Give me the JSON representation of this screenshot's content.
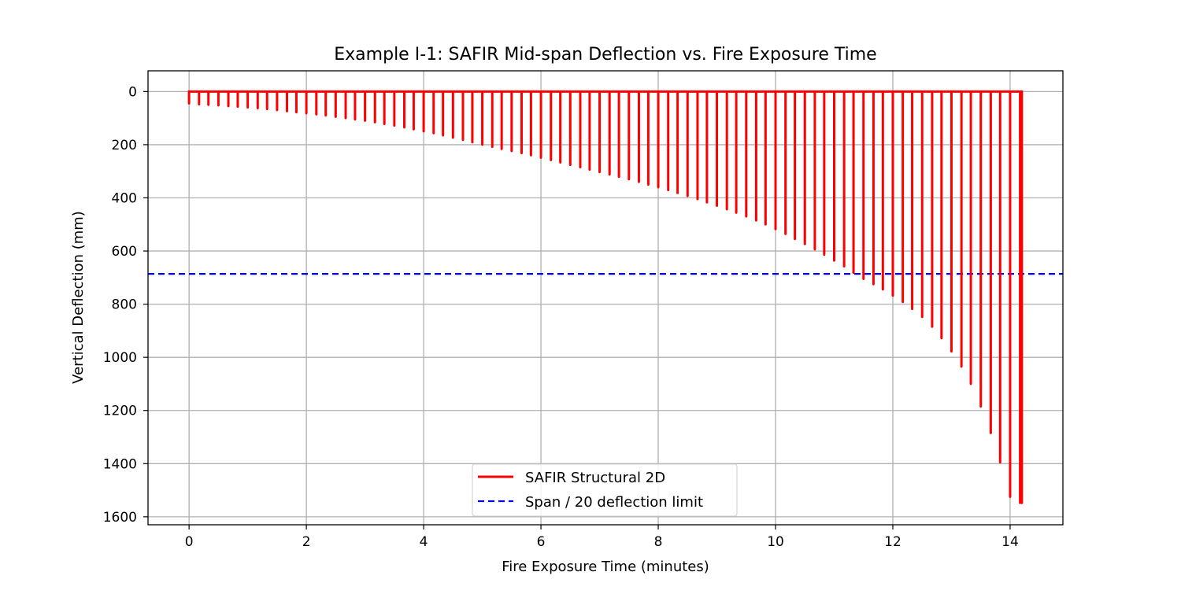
{
  "chart_data": {
    "type": "line",
    "title": "Example I-1: SAFIR Mid-span Deflection vs. Fire Exposure Time",
    "xlabel": "Fire Exposure Time (minutes)",
    "ylabel": "Vertical Deflection (mm)",
    "xlim": [
      -0.7,
      14.9
    ],
    "ylim": [
      1630,
      -78
    ],
    "y_inverted": true,
    "x_ticks": [
      0,
      2,
      4,
      6,
      8,
      10,
      12,
      14
    ],
    "y_ticks": [
      0,
      200,
      400,
      600,
      800,
      1000,
      1200,
      1400,
      1600
    ],
    "grid": true,
    "legend_position": "lower center",
    "series": [
      {
        "name": "SAFIR Structural 2D",
        "color": "#ff0000",
        "style": "solid",
        "pattern": "spike-train: deflection returns to 0 between each plotted time step",
        "peaks_x": [
          0.0,
          0.17,
          0.33,
          0.5,
          0.67,
          0.83,
          1.0,
          1.17,
          1.33,
          1.5,
          1.67,
          1.83,
          2.0,
          2.17,
          2.33,
          2.5,
          2.67,
          2.83,
          3.0,
          3.17,
          3.33,
          3.5,
          3.67,
          3.83,
          4.0,
          4.17,
          4.33,
          4.5,
          4.67,
          4.83,
          5.0,
          5.17,
          5.33,
          5.5,
          5.67,
          5.83,
          6.0,
          6.17,
          6.33,
          6.5,
          6.67,
          6.83,
          7.0,
          7.17,
          7.33,
          7.5,
          7.67,
          7.83,
          8.0,
          8.17,
          8.33,
          8.5,
          8.67,
          8.83,
          9.0,
          9.17,
          9.33,
          9.5,
          9.67,
          9.83,
          10.0,
          10.17,
          10.33,
          10.5,
          10.67,
          10.83,
          11.0,
          11.17,
          11.33,
          11.5,
          11.67,
          11.83,
          12.0,
          12.17,
          12.33,
          12.5,
          12.67,
          12.83,
          13.0,
          13.17,
          13.33,
          13.5,
          13.67,
          13.83,
          14.0,
          14.17,
          14.2
        ],
        "peaks_y": [
          45,
          48,
          50,
          52,
          55,
          57,
          60,
          63,
          66,
          70,
          74,
          78,
          82,
          86,
          90,
          95,
          100,
          105,
          110,
          116,
          122,
          128,
          135,
          142,
          150,
          157,
          165,
          174,
          182,
          191,
          200,
          208,
          216,
          224,
          232,
          240,
          249,
          258,
          267,
          276,
          285,
          294,
          303,
          312,
          321,
          330,
          340,
          350,
          360,
          371,
          382,
          393,
          405,
          417,
          430,
          443,
          456,
          470,
          485,
          500,
          518,
          536,
          555,
          574,
          594,
          614,
          636,
          658,
          682,
          705,
          725,
          745,
          768,
          792,
          818,
          848,
          885,
          928,
          978,
          1035,
          1100,
          1185,
          1285,
          1395,
          1525,
          1548,
          1548
        ]
      },
      {
        "name": "Span / 20 deflection limit",
        "color": "#0000ff",
        "style": "dashed",
        "y_constant": 686
      }
    ]
  }
}
